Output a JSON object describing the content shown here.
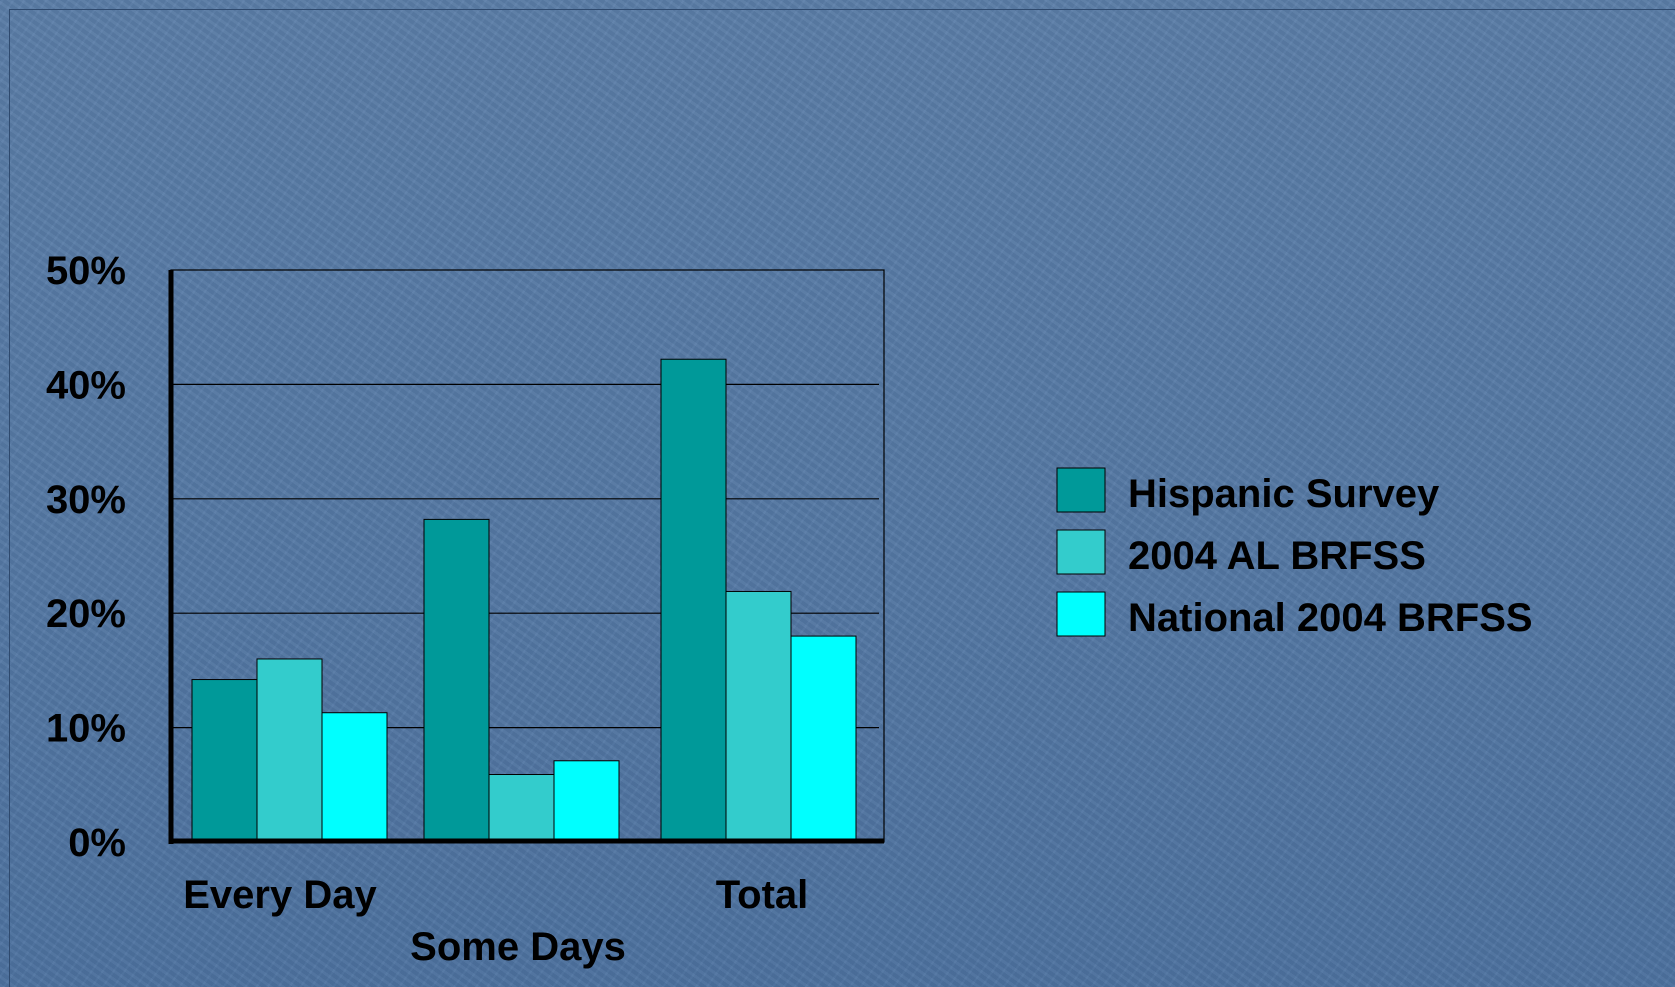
{
  "chart_data": {
    "type": "bar",
    "title": "",
    "xlabel": "",
    "ylabel": "",
    "categories": [
      "Every Day",
      "Some Days",
      "Total"
    ],
    "series": [
      {
        "name": "Hispanic Survey",
        "values": [
          14.2,
          28.2,
          42.2
        ],
        "color": "#009999"
      },
      {
        "name": "2004 AL BRFSS",
        "values": [
          16.0,
          5.9,
          21.9
        ],
        "color": "#33cccc"
      },
      {
        "name": "National 2004 BRFSS",
        "values": [
          11.3,
          7.1,
          18.0
        ],
        "color": "#00ffff"
      }
    ],
    "ylim": [
      0,
      50
    ],
    "yticks": [
      0,
      10,
      20,
      30,
      40,
      50
    ],
    "ytick_labels": [
      "0%",
      "10%",
      "20%",
      "30%",
      "40%",
      "50%"
    ],
    "grid": true,
    "legend_position": "right"
  }
}
